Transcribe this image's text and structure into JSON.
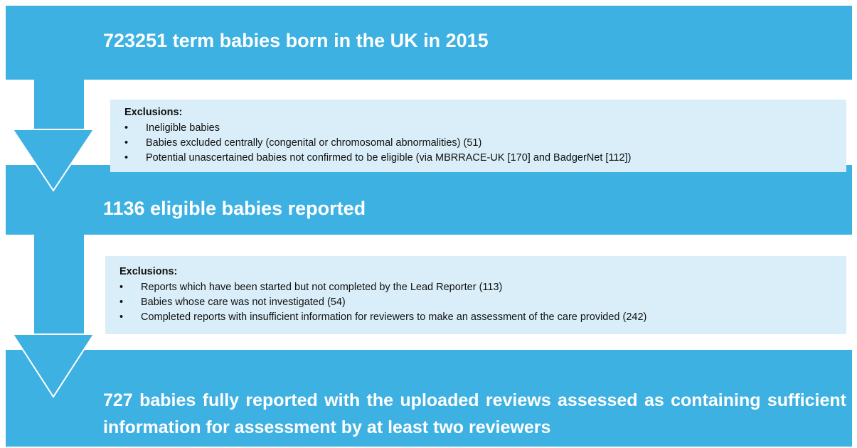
{
  "steps": [
    {
      "label": "723251 term babies born in the UK in 2015"
    },
    {
      "label": "1136 eligible babies reported"
    },
    {
      "label": "727 babies fully reported with the uploaded reviews assessed as containing sufficient information for assessment by at least two reviewers"
    }
  ],
  "exclusions": [
    {
      "heading": "Exclusions:",
      "items": [
        "Ineligible babies",
        "Babies excluded centrally (congenital or chromosomal abnormalities) (51)",
        "Potential unascertained babies not confirmed to be eligible (via MBRRACE-UK [170] and BadgerNet [112])"
      ]
    },
    {
      "heading": "Exclusions:",
      "items": [
        "Reports which have been started but not completed by the Lead Reporter (113)",
        "Babies whose care was not investigated (54)",
        "Completed reports with insufficient information for reviewers to make an assessment of the care provided (242)"
      ]
    }
  ]
}
